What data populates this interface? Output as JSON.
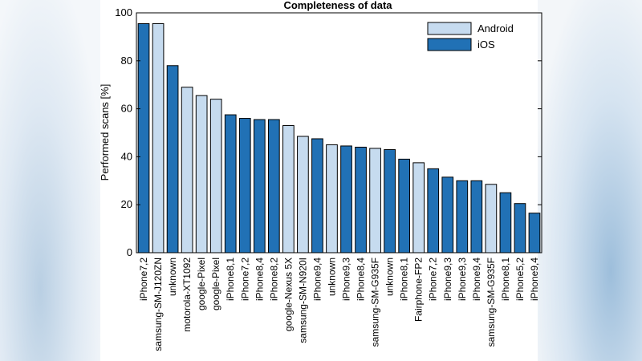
{
  "chart_data": {
    "type": "bar",
    "title": "Completeness of data",
    "xlabel": "",
    "ylabel": "Performed scans [%]",
    "ylim": [
      0,
      100
    ],
    "yticks": [
      0,
      20,
      40,
      60,
      80,
      100
    ],
    "grid": false,
    "legend_position": "top-right",
    "legend": [
      {
        "name": "Android",
        "color": "#c6dbef"
      },
      {
        "name": "iOS",
        "color": "#2171b5"
      }
    ],
    "categories": [
      "iPhone7,2",
      "samsung-SM-J120ZN",
      "unknown",
      "motorola-XT1092",
      "google-Pixel",
      "google-Pixel",
      "iPhone8,1",
      "iPhone7,2",
      "iPhone8,4",
      "iPhone8,2",
      "google-Nexus 5X",
      "samsung-SM-N920I",
      "iPhone9,4",
      "unknown",
      "iPhone9,3",
      "iPhone8,4",
      "samsung-SM-G935F",
      "unknown",
      "iPhone8,1",
      "Fairphone-FP2",
      "iPhone7,2",
      "iPhone9,3",
      "iPhone9,3",
      "iPhone9,4",
      "samsung-SM-G935F",
      "iPhone8,1",
      "iPhone5,2",
      "iPhone9,4"
    ],
    "values": [
      95.5,
      95.5,
      78,
      69,
      65.5,
      64,
      57.5,
      56,
      55.5,
      55.5,
      53,
      48.5,
      47.5,
      45,
      44.5,
      44,
      43.5,
      43,
      39,
      37.5,
      35,
      31.5,
      30,
      30,
      28.5,
      25,
      20.5,
      16.5
    ],
    "platform": [
      "iOS",
      "Android",
      "iOS",
      "Android",
      "Android",
      "Android",
      "iOS",
      "iOS",
      "iOS",
      "iOS",
      "Android",
      "Android",
      "iOS",
      "Android",
      "iOS",
      "iOS",
      "Android",
      "iOS",
      "iOS",
      "Android",
      "iOS",
      "iOS",
      "iOS",
      "iOS",
      "Android",
      "iOS",
      "iOS",
      "iOS"
    ]
  }
}
